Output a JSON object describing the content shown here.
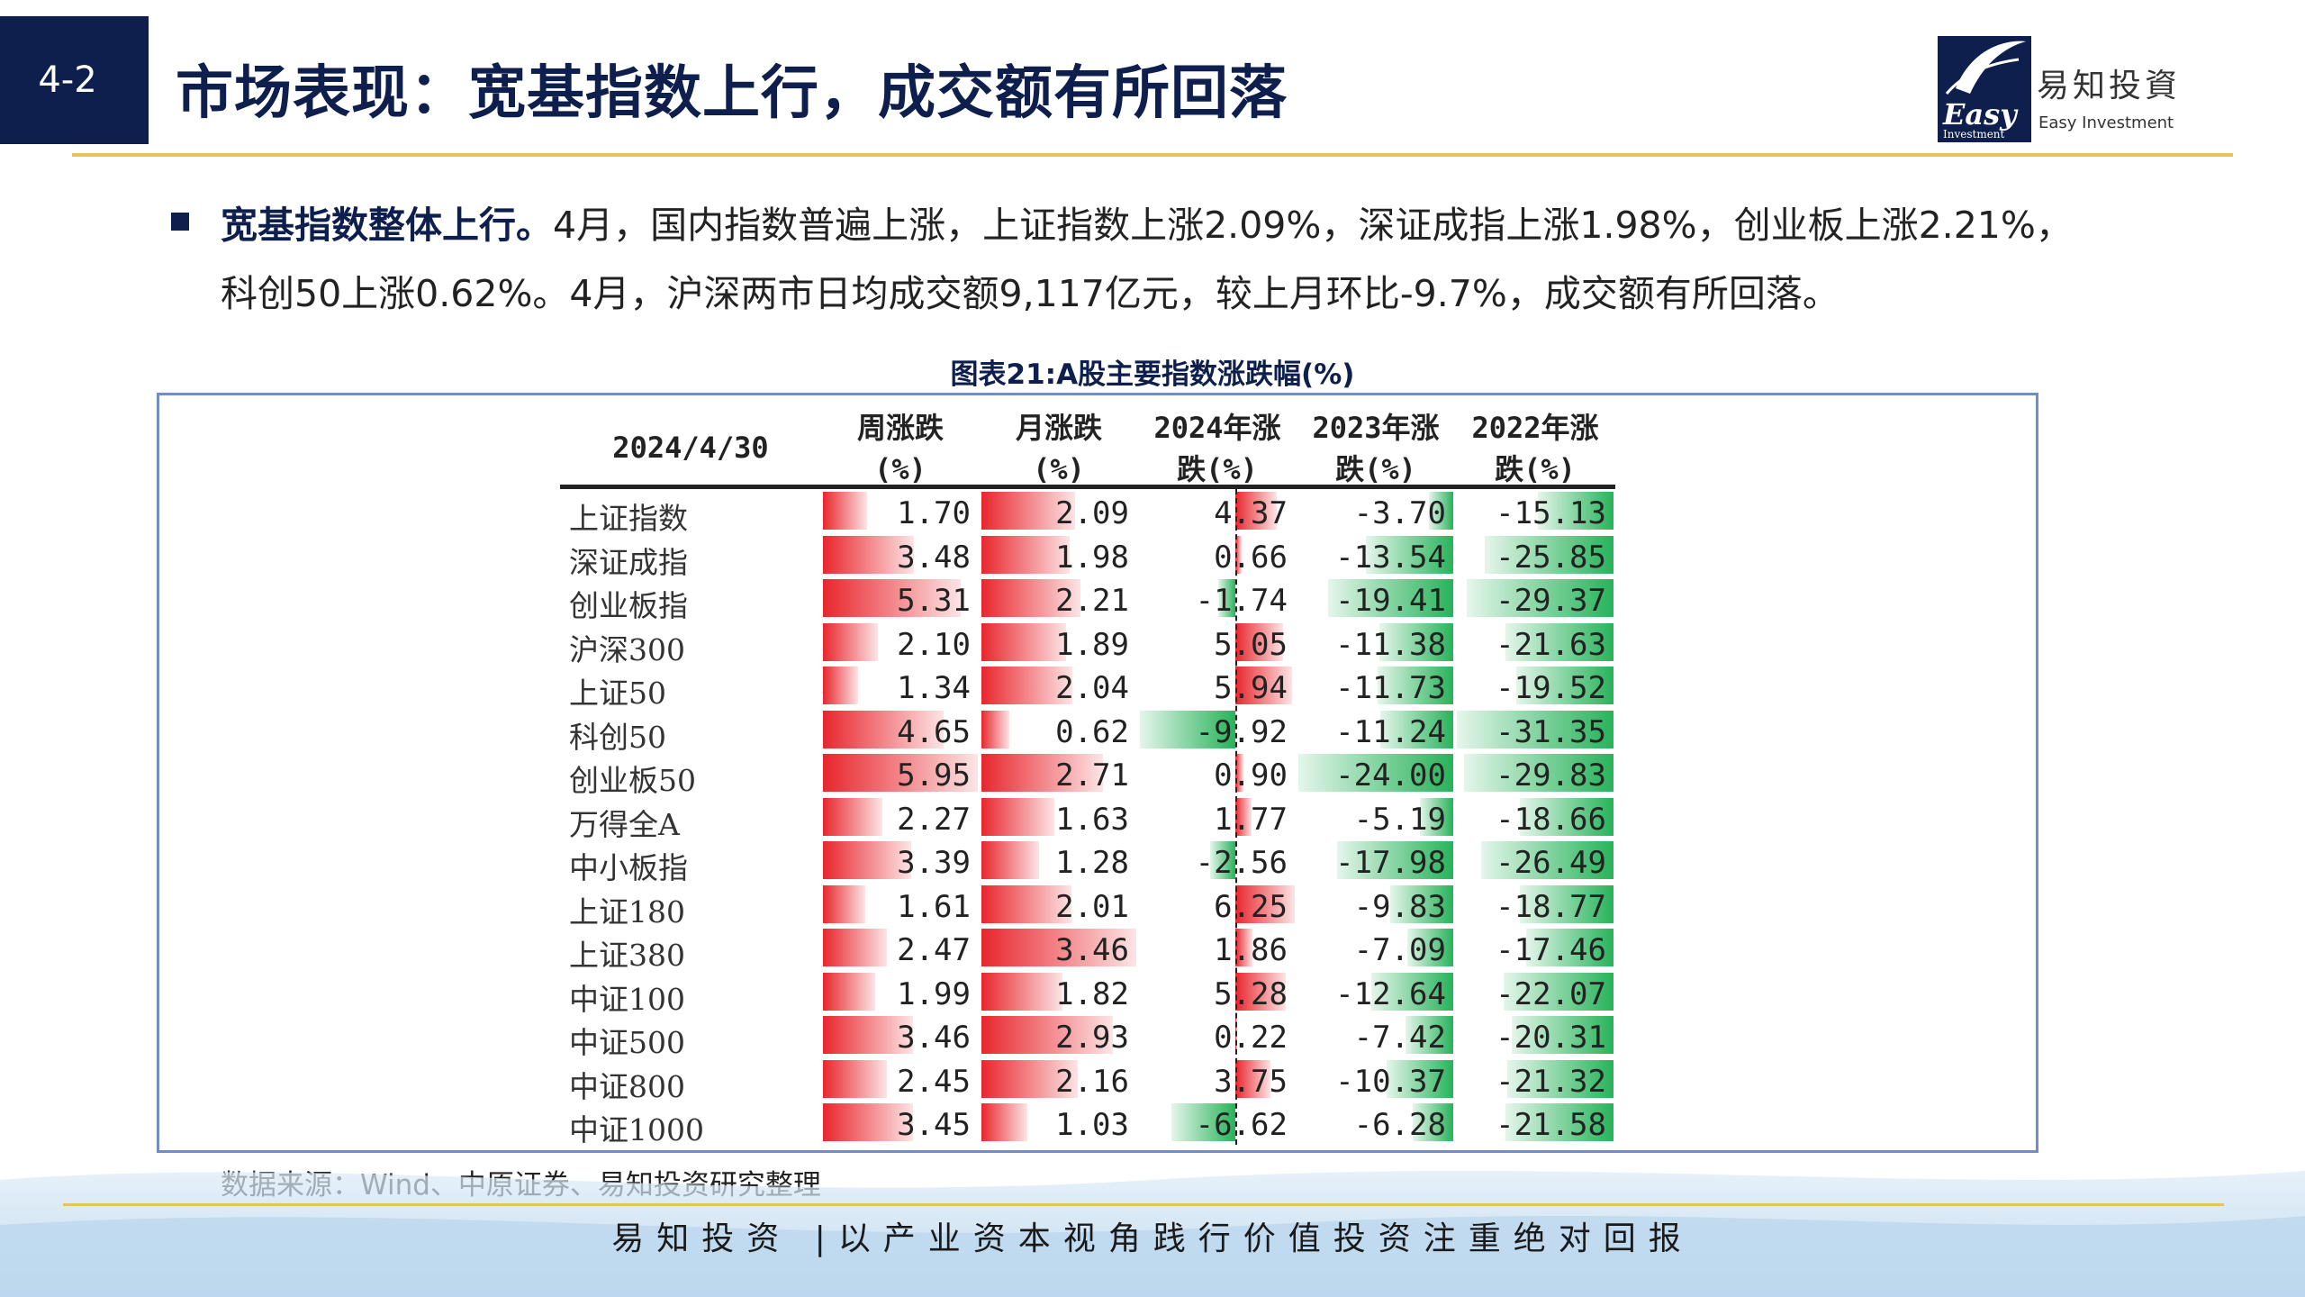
{
  "header": {
    "section": "4-2",
    "title": "市场表现：宽基指数上行，成交额有所回落",
    "logo_word": "Easy",
    "logo_sub": "Investment",
    "logo_cn": "易知投資",
    "logo_en": "Easy Investment"
  },
  "body": {
    "lead": "宽基指数整体上行。",
    "text": "4月，国内指数普遍上涨，上证指数上涨2.09%，深证成指上涨1.98%，创业板上涨2.21%，科创50上涨0.62%。4月，沪深两市日均成交额9,117亿元，较上月环比-9.7%，成交额有所回落。"
  },
  "figure": {
    "title": "图表21:A股主要指数涨跌幅(%)",
    "source": "数据来源：Wind、中原证券、易知投资研究整理"
  },
  "chart_data": {
    "type": "table",
    "columns": [
      {
        "line1": "2024/4/30",
        "line2": ""
      },
      {
        "line1": "周涨跌",
        "line2": "(%)"
      },
      {
        "line1": "月涨跌",
        "line2": "(%)"
      },
      {
        "line1": "2024年涨",
        "line2": "跌(%)"
      },
      {
        "line1": "2023年涨",
        "line2": "跌(%)"
      },
      {
        "line1": "2022年涨",
        "line2": "跌(%)"
      }
    ],
    "rows": [
      {
        "name": "上证指数",
        "week": "1.70",
        "month": "2.09",
        "y2024": "4.37",
        "y2023": "-3.70",
        "y2022": "-15.13"
      },
      {
        "name": "深证成指",
        "week": "3.48",
        "month": "1.98",
        "y2024": "0.66",
        "y2023": "-13.54",
        "y2022": "-25.85"
      },
      {
        "name": "创业板指",
        "week": "5.31",
        "month": "2.21",
        "y2024": "-1.74",
        "y2023": "-19.41",
        "y2022": "-29.37"
      },
      {
        "name": "沪深300",
        "week": "2.10",
        "month": "1.89",
        "y2024": "5.05",
        "y2023": "-11.38",
        "y2022": "-21.63"
      },
      {
        "name": "上证50",
        "week": "1.34",
        "month": "2.04",
        "y2024": "5.94",
        "y2023": "-11.73",
        "y2022": "-19.52"
      },
      {
        "name": "科创50",
        "week": "4.65",
        "month": "0.62",
        "y2024": "-9.92",
        "y2023": "-11.24",
        "y2022": "-31.35"
      },
      {
        "name": "创业板50",
        "week": "5.95",
        "month": "2.71",
        "y2024": "0.90",
        "y2023": "-24.00",
        "y2022": "-29.83"
      },
      {
        "name": "万得全A",
        "week": "2.27",
        "month": "1.63",
        "y2024": "1.77",
        "y2023": "-5.19",
        "y2022": "-18.66"
      },
      {
        "name": "中小板指",
        "week": "3.39",
        "month": "1.28",
        "y2024": "-2.56",
        "y2023": "-17.98",
        "y2022": "-26.49"
      },
      {
        "name": "上证180",
        "week": "1.61",
        "month": "2.01",
        "y2024": "6.25",
        "y2023": "-9.83",
        "y2022": "-18.77"
      },
      {
        "name": "上证380",
        "week": "2.47",
        "month": "3.46",
        "y2024": "1.86",
        "y2023": "-7.09",
        "y2022": "-17.46"
      },
      {
        "name": "中证100",
        "week": "1.99",
        "month": "1.82",
        "y2024": "5.28",
        "y2023": "-12.64",
        "y2022": "-22.07"
      },
      {
        "name": "中证500",
        "week": "3.46",
        "month": "2.93",
        "y2024": "0.22",
        "y2023": "-7.42",
        "y2022": "-20.31"
      },
      {
        "name": "中证800",
        "week": "2.45",
        "month": "2.16",
        "y2024": "3.75",
        "y2023": "-10.37",
        "y2022": "-21.32"
      },
      {
        "name": "中证1000",
        "week": "3.45",
        "month": "1.03",
        "y2024": "-6.62",
        "y2023": "-6.28",
        "y2022": "-21.58"
      }
    ],
    "colors": {
      "positive": "#e8262d",
      "negative": "#27b35a"
    }
  },
  "footer": {
    "text": "易知投资 |以产业资本视角践行价值投资注重绝对回报"
  }
}
